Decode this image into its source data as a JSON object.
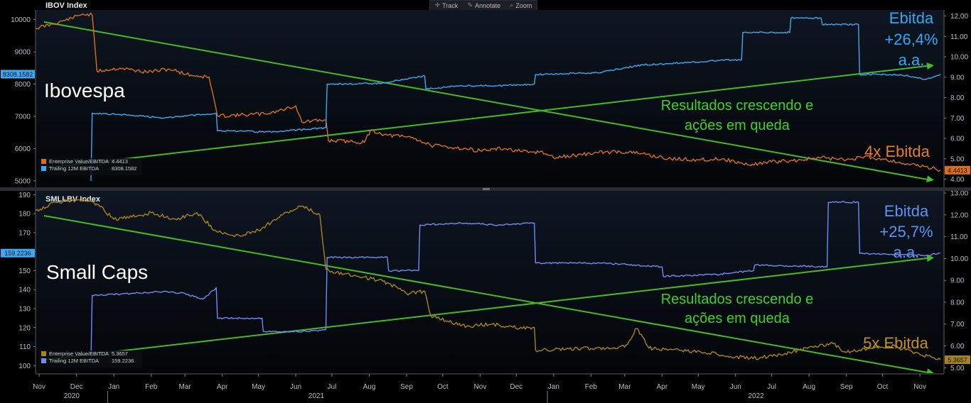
{
  "toolbar": {
    "items": [
      {
        "label": "Track",
        "icon": "crosshair-icon"
      },
      {
        "label": "Annotate",
        "icon": "pencil-icon"
      },
      {
        "label": "Zoom",
        "icon": "magnifier-icon"
      }
    ]
  },
  "colors": {
    "background": "#000000",
    "panel_top": "#0e1622",
    "panel_bottom": "#030508",
    "orange_series": "#d86f1e",
    "gold_series": "#a8841a",
    "blue_series": "#3ea8f0",
    "periwinkle_series": "#6d8cf5",
    "trend": "#44bb22",
    "green_text": "#3ed12a",
    "ebitda_label_top": "#2fa8f2",
    "ebitda_label_bottom": "#5b93f2",
    "multiple_label_top": "#e87d24",
    "multiple_label_bottom": "#c4901c",
    "axis_text": "#b9bec4"
  },
  "chart_data": [
    {
      "type": "line",
      "title": "IBOV Index",
      "panel_label": "Ibovespa",
      "x_range": [
        "2020-11-01",
        "2022-11-25"
      ],
      "left_axis": {
        "ticks": [
          5000,
          6000,
          7000,
          8000,
          9000,
          10000
        ],
        "ylim": [
          4800,
          10300
        ],
        "last_value_tag": "8308.1582"
      },
      "right_axis": {
        "ticks": [
          "4.00",
          "5.00",
          "6.00",
          "7.00",
          "8.00",
          "9.00",
          "10.00",
          "11.00",
          "12.00"
        ],
        "ylim": [
          3.6,
          12.3
        ],
        "last_value_tag": "4.4413"
      },
      "legend": {
        "placement": "bottom-left",
        "entries": [
          {
            "name": "Enterprise Value/EBITDA",
            "value": "4.4413",
            "color": "#d86f1e"
          },
          {
            "name": "Trailing 12M EBITDA",
            "value": "8308.1582",
            "color": "#3ea8f0"
          }
        ]
      },
      "series": [
        {
          "name": "Enterprise Value/EBITDA",
          "axis": "right",
          "points": [
            [
              "2020-11-01",
              11.4
            ],
            [
              "2020-11-15",
              11.6
            ],
            [
              "2020-12-01",
              11.9
            ],
            [
              "2020-12-10",
              12.1
            ],
            [
              "2020-12-18",
              12.05
            ],
            [
              "2020-12-22",
              9.3
            ],
            [
              "2021-01-10",
              9.45
            ],
            [
              "2021-02-01",
              9.25
            ],
            [
              "2021-02-20",
              9.4
            ],
            [
              "2021-03-10",
              9.1
            ],
            [
              "2021-03-25",
              9.0
            ],
            [
              "2021-04-01",
              7.1
            ],
            [
              "2021-04-20",
              7.15
            ],
            [
              "2021-05-10",
              7.2
            ],
            [
              "2021-05-25",
              7.4
            ],
            [
              "2021-06-05",
              7.6
            ],
            [
              "2021-06-10",
              6.8
            ],
            [
              "2021-06-30",
              6.9
            ],
            [
              "2021-07-02",
              5.9
            ],
            [
              "2021-07-20",
              5.85
            ],
            [
              "2021-08-01",
              5.8
            ],
            [
              "2021-08-06",
              6.4
            ],
            [
              "2021-08-20",
              6.15
            ],
            [
              "2021-09-10",
              6.05
            ],
            [
              "2021-09-25",
              5.65
            ],
            [
              "2021-10-15",
              5.55
            ],
            [
              "2021-11-05",
              5.4
            ],
            [
              "2021-11-25",
              5.5
            ],
            [
              "2021-12-15",
              5.3
            ],
            [
              "2021-12-25",
              5.35
            ],
            [
              "2022-01-05",
              5.05
            ],
            [
              "2022-01-20",
              5.15
            ],
            [
              "2022-02-10",
              5.3
            ],
            [
              "2022-03-01",
              5.35
            ],
            [
              "2022-03-20",
              5.25
            ],
            [
              "2022-04-10",
              5.0
            ],
            [
              "2022-05-05",
              4.95
            ],
            [
              "2022-05-25",
              5.0
            ],
            [
              "2022-06-15",
              4.7
            ],
            [
              "2022-07-05",
              4.85
            ],
            [
              "2022-07-20",
              4.9
            ],
            [
              "2022-08-15",
              5.05
            ],
            [
              "2022-09-05",
              4.95
            ],
            [
              "2022-09-20",
              5.1
            ],
            [
              "2022-10-05",
              5.0
            ],
            [
              "2022-10-25",
              4.75
            ],
            [
              "2022-11-15",
              4.55
            ],
            [
              "2022-11-22",
              4.44
            ]
          ]
        },
        {
          "name": "Trailing 12M EBITDA",
          "axis": "left",
          "points": [
            [
              "2020-12-17",
              5000
            ],
            [
              "2020-12-18",
              7100
            ],
            [
              "2021-01-15",
              7050
            ],
            [
              "2021-02-15",
              6950
            ],
            [
              "2021-03-31",
              7100
            ],
            [
              "2021-04-01",
              6550
            ],
            [
              "2021-05-15",
              6520
            ],
            [
              "2021-06-15",
              6600
            ],
            [
              "2021-06-30",
              6650
            ],
            [
              "2021-07-01",
              8000
            ],
            [
              "2021-08-15",
              8020
            ],
            [
              "2021-09-10",
              8200
            ],
            [
              "2021-09-20",
              8250
            ],
            [
              "2021-09-21",
              7850
            ],
            [
              "2021-10-20",
              7950
            ],
            [
              "2021-11-20",
              7950
            ],
            [
              "2021-12-20",
              8000
            ],
            [
              "2021-12-21",
              8300
            ],
            [
              "2022-02-10",
              8350
            ],
            [
              "2022-03-20",
              8600
            ],
            [
              "2022-04-20",
              8650
            ],
            [
              "2022-05-25",
              8750
            ],
            [
              "2022-06-10",
              8750
            ],
            [
              "2022-06-11",
              9600
            ],
            [
              "2022-07-20",
              9600
            ],
            [
              "2022-07-21",
              10050
            ],
            [
              "2022-08-15",
              10050
            ],
            [
              "2022-08-16",
              9850
            ],
            [
              "2022-09-15",
              9850
            ],
            [
              "2022-09-16",
              8300
            ],
            [
              "2022-10-20",
              8300
            ],
            [
              "2022-11-10",
              8150
            ],
            [
              "2022-11-22",
              8308
            ]
          ]
        }
      ],
      "annotations": {
        "ebitda_growth": [
          "Ebitda",
          "+26,4%",
          "a.a."
        ],
        "message": [
          "Resultados crescendo e",
          "ações em queda"
        ],
        "multiple": "4x Ebitda"
      }
    },
    {
      "type": "line",
      "title": "SMLLBV Index",
      "panel_label": "Small Caps",
      "x_range": [
        "2020-11-01",
        "2022-11-25"
      ],
      "left_axis": {
        "ticks": [
          100,
          110,
          120,
          130,
          140,
          150,
          160,
          170,
          180,
          190
        ],
        "ylim": [
          96,
          192
        ],
        "last_value_tag": "159.2236"
      },
      "right_axis": {
        "ticks": [
          "5.00",
          "6.00",
          "7.00",
          "8.00",
          "9.00",
          "10.00",
          "11.00",
          "12.00",
          "13.00"
        ],
        "ylim": [
          4.75,
          13.1
        ],
        "last_value_tag": "5.3657"
      },
      "legend": {
        "placement": "bottom-left",
        "entries": [
          {
            "name": "Enterprise Value/EBITDA",
            "value": "5.3657",
            "color": "#a8841a"
          },
          {
            "name": "Trailing 12M EBITDA",
            "value": "159.2236",
            "color": "#6d8cf5"
          }
        ]
      },
      "series": [
        {
          "name": "Enterprise Value/EBITDA",
          "axis": "right",
          "points": [
            [
              "2020-11-01",
              12.2
            ],
            [
              "2020-11-20",
              12.6
            ],
            [
              "2020-12-10",
              12.7
            ],
            [
              "2020-12-22",
              12.5
            ],
            [
              "2021-01-05",
              11.8
            ],
            [
              "2021-01-20",
              11.9
            ],
            [
              "2021-02-05",
              12.1
            ],
            [
              "2021-02-25",
              11.8
            ],
            [
              "2021-03-15",
              12.1
            ],
            [
              "2021-03-30",
              11.3
            ],
            [
              "2021-04-15",
              11.0
            ],
            [
              "2021-05-05",
              11.3
            ],
            [
              "2021-05-25",
              12.0
            ],
            [
              "2021-06-10",
              12.4
            ],
            [
              "2021-06-25",
              12.0
            ],
            [
              "2021-06-30",
              9.5
            ],
            [
              "2021-07-15",
              9.3
            ],
            [
              "2021-08-01",
              9.15
            ],
            [
              "2021-08-20",
              8.9
            ],
            [
              "2021-09-05",
              8.4
            ],
            [
              "2021-09-20",
              8.5
            ],
            [
              "2021-09-25",
              7.4
            ],
            [
              "2021-10-10",
              7.1
            ],
            [
              "2021-10-25",
              6.9
            ],
            [
              "2021-11-15",
              7.0
            ],
            [
              "2021-12-10",
              6.8
            ],
            [
              "2021-12-20",
              6.85
            ],
            [
              "2021-12-21",
              5.8
            ],
            [
              "2022-01-15",
              5.85
            ],
            [
              "2022-02-10",
              5.9
            ],
            [
              "2022-03-05",
              5.95
            ],
            [
              "2022-03-15",
              6.8
            ],
            [
              "2022-03-25",
              5.9
            ],
            [
              "2022-04-20",
              5.8
            ],
            [
              "2022-05-10",
              5.7
            ],
            [
              "2022-06-05",
              5.5
            ],
            [
              "2022-06-25",
              5.45
            ],
            [
              "2022-07-20",
              5.7
            ],
            [
              "2022-08-10",
              6.0
            ],
            [
              "2022-08-25",
              6.1
            ],
            [
              "2022-09-05",
              5.7
            ],
            [
              "2022-09-25",
              5.9
            ],
            [
              "2022-10-15",
              6.0
            ],
            [
              "2022-11-05",
              5.6
            ],
            [
              "2022-11-22",
              5.37
            ]
          ]
        },
        {
          "name": "Trailing 12M EBITDA",
          "axis": "left",
          "points": [
            [
              "2020-12-17",
              103
            ],
            [
              "2020-12-18",
              137
            ],
            [
              "2021-01-20",
              138
            ],
            [
              "2021-02-15",
              139
            ],
            [
              "2021-03-05",
              138
            ],
            [
              "2021-03-20",
              135
            ],
            [
              "2021-03-31",
              141
            ],
            [
              "2021-04-01",
              125
            ],
            [
              "2021-05-08",
              125
            ],
            [
              "2021-05-09",
              118
            ],
            [
              "2021-06-15",
              118
            ],
            [
              "2021-06-30",
              119
            ],
            [
              "2021-07-01",
              157
            ],
            [
              "2021-08-20",
              157
            ],
            [
              "2021-08-21",
              150
            ],
            [
              "2021-09-15",
              150
            ],
            [
              "2021-09-16",
              174
            ],
            [
              "2021-10-20",
              175
            ],
            [
              "2021-11-20",
              174
            ],
            [
              "2021-12-20",
              175
            ],
            [
              "2021-12-21",
              154
            ],
            [
              "2022-02-15",
              154
            ],
            [
              "2022-04-05",
              152
            ],
            [
              "2022-04-06",
              147
            ],
            [
              "2022-05-20",
              148
            ],
            [
              "2022-06-20",
              150
            ],
            [
              "2022-06-21",
              153
            ],
            [
              "2022-08-20",
              152
            ],
            [
              "2022-08-21",
              186
            ],
            [
              "2022-09-15",
              186
            ],
            [
              "2022-09-16",
              159
            ],
            [
              "2022-11-10",
              158
            ],
            [
              "2022-11-22",
              159.2
            ]
          ]
        }
      ],
      "annotations": {
        "ebitda_growth": [
          "Ebitda",
          "+25,7%",
          "a.a."
        ],
        "message": [
          "Resultados crescendo e",
          "ações em queda"
        ],
        "multiple": "5x Ebitda"
      }
    }
  ],
  "x_axis": {
    "months": [
      {
        "label": "Nov",
        "date": "2020-11-04"
      },
      {
        "label": "Dec",
        "date": "2020-12-05"
      },
      {
        "label": "Jan",
        "date": "2021-01-05"
      },
      {
        "label": "Feb",
        "date": "2021-02-05"
      },
      {
        "label": "Mar",
        "date": "2021-03-05"
      },
      {
        "label": "Apr",
        "date": "2021-04-05"
      },
      {
        "label": "May",
        "date": "2021-05-05"
      },
      {
        "label": "Jun",
        "date": "2021-06-05"
      },
      {
        "label": "Jul",
        "date": "2021-07-05"
      },
      {
        "label": "Aug",
        "date": "2021-08-05"
      },
      {
        "label": "Sep",
        "date": "2021-09-05"
      },
      {
        "label": "Oct",
        "date": "2021-10-05"
      },
      {
        "label": "Nov",
        "date": "2021-11-05"
      },
      {
        "label": "Dec",
        "date": "2021-12-05"
      },
      {
        "label": "Jan",
        "date": "2022-01-05"
      },
      {
        "label": "Feb",
        "date": "2022-02-05"
      },
      {
        "label": "Mar",
        "date": "2022-03-05"
      },
      {
        "label": "Apr",
        "date": "2022-04-05"
      },
      {
        "label": "May",
        "date": "2022-05-05"
      },
      {
        "label": "Jun",
        "date": "2022-06-05"
      },
      {
        "label": "Jul",
        "date": "2022-07-05"
      },
      {
        "label": "Aug",
        "date": "2022-08-05"
      },
      {
        "label": "Sep",
        "date": "2022-09-05"
      },
      {
        "label": "Oct",
        "date": "2022-10-05"
      },
      {
        "label": "Nov",
        "date": "2022-11-05"
      }
    ],
    "years": [
      {
        "label": "2020",
        "date": "2020-12-01"
      },
      {
        "label": "2021",
        "date": "2021-06-22"
      },
      {
        "label": "2022",
        "date": "2022-06-22"
      }
    ]
  }
}
